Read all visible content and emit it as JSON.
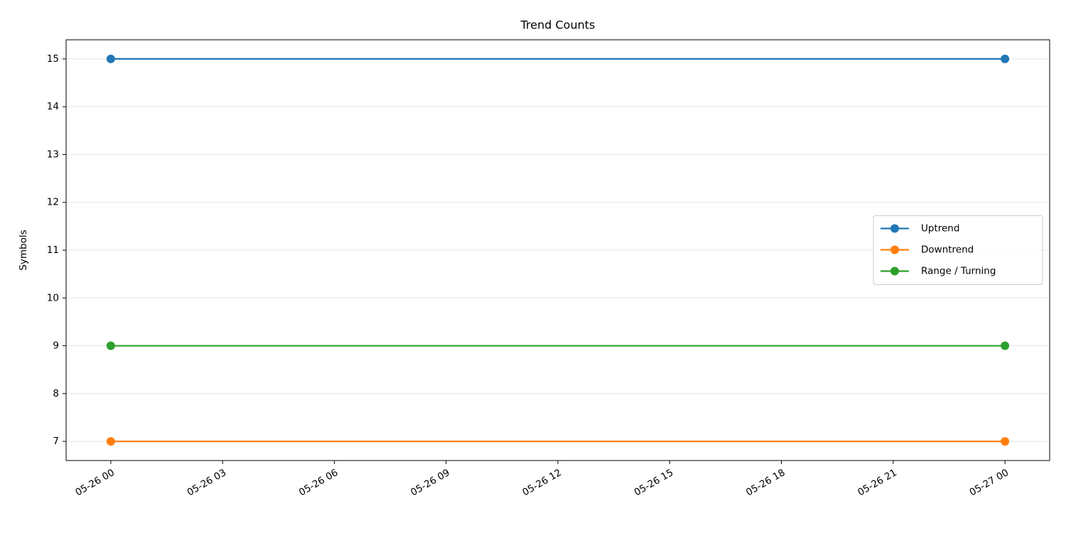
{
  "chart_data": {
    "type": "line",
    "title": "Trend Counts",
    "y_label": "Symbols",
    "x": [
      "05-26 00",
      "05-27 00"
    ],
    "series": [
      {
        "name": "Uptrend",
        "color": "#1f77b4",
        "values": [
          15,
          15
        ]
      },
      {
        "name": "Downtrend",
        "color": "#ff7f0e",
        "values": [
          7,
          7
        ]
      },
      {
        "name": "Range / Turning",
        "color": "#2ca02c",
        "values": [
          9,
          9
        ]
      }
    ],
    "xlim": [
      "05-25 22:48",
      "05-27 01:12"
    ],
    "xticks": [
      "05-26 00",
      "05-26 03",
      "05-26 06",
      "05-26 09",
      "05-26 12",
      "05-26 15",
      "05-26 18",
      "05-26 21",
      "05-27 00"
    ],
    "ylim": [
      6.6,
      15.4
    ],
    "yticks": [
      7,
      8,
      9,
      10,
      11,
      12,
      13,
      14,
      15
    ],
    "grid": "y",
    "legend": "center right",
    "marker": "circle"
  }
}
